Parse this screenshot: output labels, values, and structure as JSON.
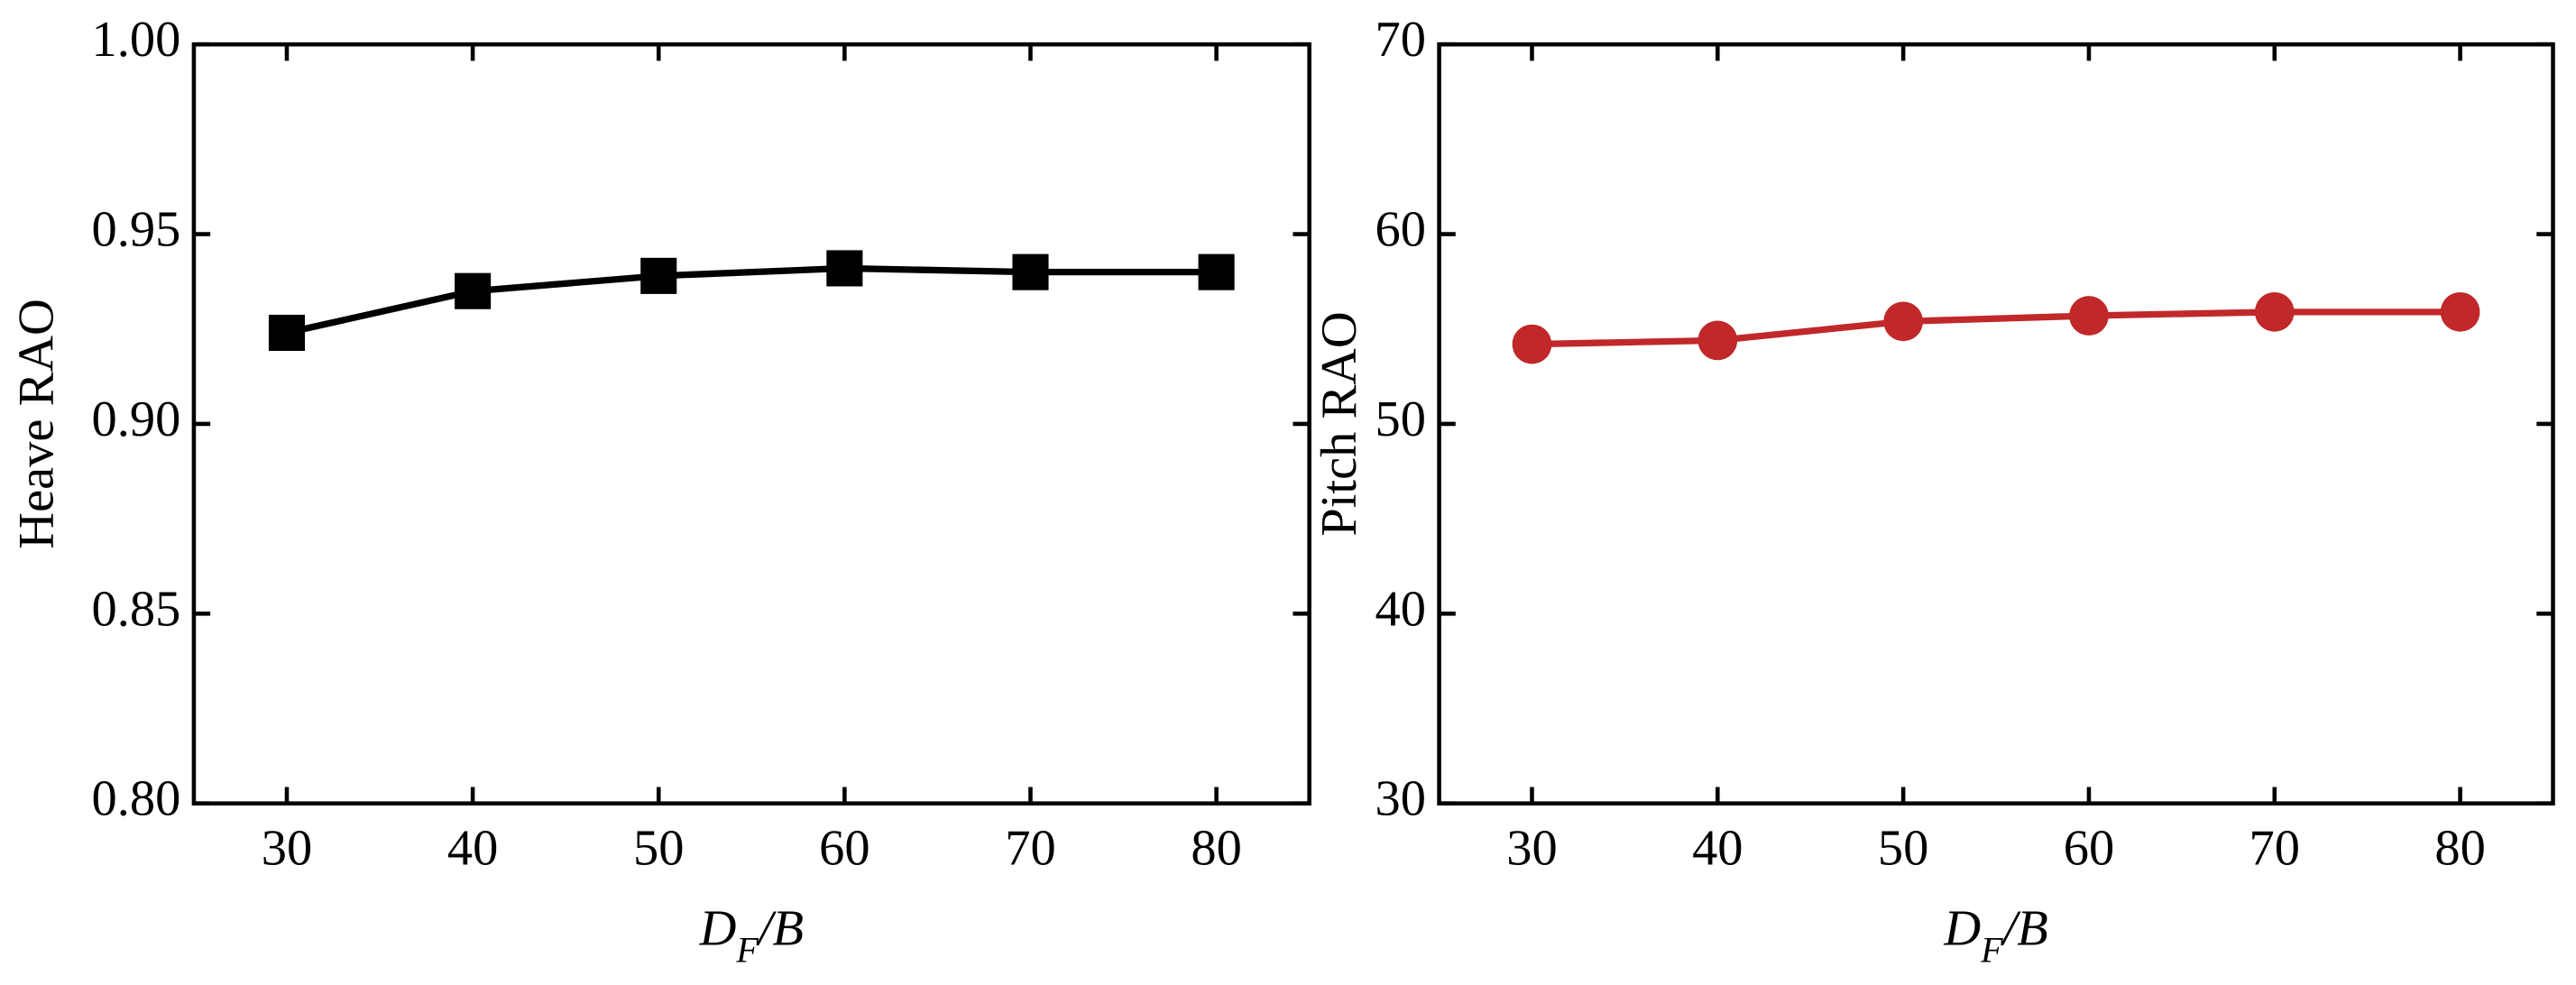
{
  "chart_data": [
    {
      "type": "line",
      "y_label": "Heave RAO",
      "x_label": [
        "D",
        "F",
        "/B"
      ],
      "x": [
        30,
        40,
        50,
        60,
        70,
        80
      ],
      "values": [
        0.924,
        0.935,
        0.939,
        0.941,
        0.94,
        0.94
      ],
      "color": "#000000",
      "marker": "square",
      "xlim": [
        25,
        85
      ],
      "xticks": [
        30,
        40,
        50,
        60,
        70,
        80
      ],
      "ylim": [
        0.8,
        1.0
      ],
      "yticks": [
        {
          "value": 0.8,
          "label": "0.80"
        },
        {
          "value": 0.85,
          "label": "0.85"
        },
        {
          "value": 0.9,
          "label": "0.90"
        },
        {
          "value": 0.95,
          "label": "0.95"
        },
        {
          "value": 1.0,
          "label": "1.00"
        }
      ]
    },
    {
      "type": "line",
      "y_label": "Pitch RAO",
      "x_label": [
        "D",
        "F",
        "/B"
      ],
      "x": [
        30,
        40,
        50,
        60,
        70,
        80
      ],
      "values": [
        54.2,
        54.4,
        55.4,
        55.7,
        55.9,
        55.9
      ],
      "color": "#c0282a",
      "marker": "circle",
      "xlim": [
        25,
        85
      ],
      "xticks": [
        30,
        40,
        50,
        60,
        70,
        80
      ],
      "ylim": [
        30,
        70
      ],
      "yticks": [
        30,
        40,
        50,
        60,
        70
      ]
    }
  ]
}
